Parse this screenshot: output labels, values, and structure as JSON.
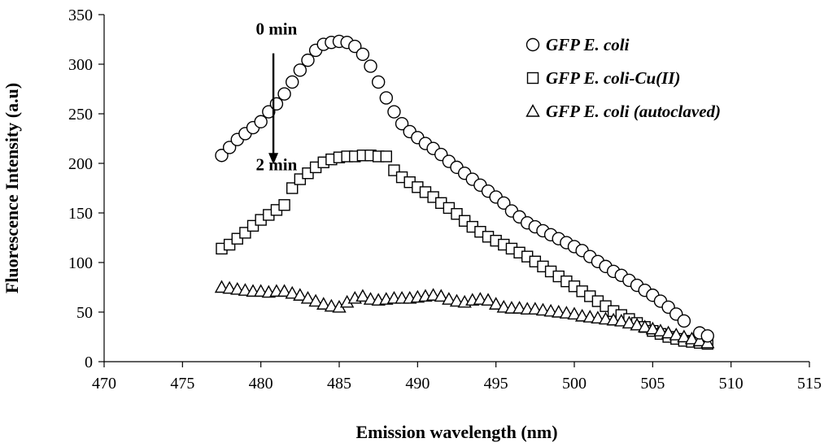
{
  "chart_data": {
    "type": "scatter",
    "title": "",
    "xlabel": "Emission wavelength (nm)",
    "ylabel": "Fluorescence Intensity (a.u)",
    "xlim": [
      470,
      515
    ],
    "ylim": [
      0,
      350
    ],
    "xticks": [
      470,
      475,
      480,
      485,
      490,
      495,
      500,
      505,
      510,
      515
    ],
    "yticks": [
      0,
      50,
      100,
      150,
      200,
      250,
      300,
      350
    ],
    "grid": false,
    "legend_position": "top-right",
    "annotations": [
      {
        "text": "0 min",
        "x": 481.0,
        "y": 330
      },
      {
        "text": "2 min",
        "x": 481.0,
        "y": 193
      }
    ],
    "arrow": {
      "from": [
        480.8,
        311
      ],
      "to": [
        480.8,
        199
      ]
    },
    "series": [
      {
        "name": "GFP E. coli",
        "marker": "circle",
        "x": [
          477.5,
          478.0,
          478.5,
          479.0,
          479.5,
          480.0,
          480.5,
          481.0,
          481.5,
          482.0,
          482.5,
          483.0,
          483.5,
          484.0,
          484.5,
          485.0,
          485.5,
          486.0,
          486.5,
          487.0,
          487.5,
          488.0,
          488.5,
          489.0,
          489.5,
          490.0,
          490.5,
          491.0,
          491.5,
          492.0,
          492.5,
          493.0,
          493.5,
          494.0,
          494.5,
          495.0,
          495.5,
          496.0,
          496.5,
          497.0,
          497.5,
          498.0,
          498.5,
          499.0,
          499.5,
          500.0,
          500.5,
          501.0,
          501.5,
          502.0,
          502.5,
          503.0,
          503.5,
          504.0,
          504.5,
          505.0,
          505.5,
          506.0,
          506.5,
          507.0,
          508.0,
          508.5
        ],
        "values": [
          208,
          216,
          224,
          230,
          236,
          242,
          252,
          260,
          270,
          282,
          294,
          304,
          314,
          320,
          322,
          323,
          322,
          318,
          310,
          298,
          282,
          266,
          252,
          240,
          232,
          226,
          220,
          215,
          209,
          202,
          196,
          190,
          184,
          178,
          172,
          166,
          160,
          152,
          146,
          140,
          136,
          132,
          128,
          124,
          120,
          116,
          112,
          106,
          101,
          96,
          91,
          87,
          82,
          77,
          72,
          67,
          61,
          55,
          48,
          41,
          29,
          26
        ]
      },
      {
        "name": "GFP E. coli-Cu(II)",
        "marker": "square",
        "x": [
          477.5,
          478.0,
          478.5,
          479.0,
          479.5,
          480.0,
          480.5,
          481.0,
          481.5,
          482.0,
          482.5,
          483.0,
          483.5,
          484.0,
          484.5,
          485.0,
          485.5,
          486.0,
          486.5,
          487.0,
          487.5,
          488.0,
          488.5,
          489.0,
          489.5,
          490.0,
          490.5,
          491.0,
          491.5,
          492.0,
          492.5,
          493.0,
          493.5,
          494.0,
          494.5,
          495.0,
          495.5,
          496.0,
          496.5,
          497.0,
          497.5,
          498.0,
          498.5,
          499.0,
          499.5,
          500.0,
          500.5,
          501.0,
          501.5,
          502.0,
          502.5,
          503.0,
          503.5,
          504.0,
          504.5,
          505.0,
          505.5,
          506.0,
          506.5,
          507.0,
          507.5,
          508.0,
          508.5
        ],
        "values": [
          114,
          118,
          124,
          130,
          137,
          143,
          148,
          153,
          158,
          175,
          184,
          190,
          196,
          201,
          204,
          206,
          207,
          207,
          208,
          208,
          207,
          207,
          193,
          186,
          181,
          176,
          171,
          166,
          160,
          155,
          149,
          142,
          136,
          131,
          126,
          122,
          118,
          114,
          110,
          106,
          101,
          96,
          91,
          86,
          81,
          76,
          71,
          66,
          61,
          56,
          51,
          47,
          43,
          39,
          35,
          31,
          28,
          25,
          23,
          21,
          20,
          19,
          18
        ]
      },
      {
        "name": "GFP E. coli (autoclaved)",
        "marker": "triangle",
        "x": [
          477.5,
          478.0,
          478.5,
          479.0,
          479.5,
          480.0,
          480.5,
          481.0,
          481.5,
          482.0,
          482.5,
          483.0,
          483.5,
          484.0,
          484.5,
          485.0,
          485.5,
          486.0,
          486.5,
          487.0,
          487.5,
          488.0,
          488.5,
          489.0,
          489.5,
          490.0,
          490.5,
          491.0,
          491.5,
          492.0,
          492.5,
          493.0,
          493.5,
          494.0,
          494.5,
          495.0,
          495.5,
          496.0,
          496.5,
          497.0,
          497.5,
          498.0,
          498.5,
          499.0,
          499.5,
          500.0,
          500.5,
          501.0,
          501.5,
          502.0,
          502.5,
          503.0,
          503.5,
          504.0,
          504.5,
          505.0,
          505.5,
          506.0,
          506.5,
          507.0,
          507.5,
          508.0,
          508.5
        ],
        "values": [
          75,
          74,
          73,
          72,
          71,
          71,
          70,
          71,
          71,
          69,
          67,
          64,
          61,
          58,
          56,
          55,
          60,
          64,
          66,
          63,
          62,
          63,
          64,
          64,
          64,
          65,
          66,
          67,
          66,
          63,
          61,
          60,
          62,
          63,
          62,
          58,
          55,
          54,
          54,
          53,
          53,
          52,
          51,
          50,
          49,
          48,
          46,
          45,
          44,
          43,
          42,
          41,
          39,
          37,
          35,
          33,
          31,
          29,
          27,
          25,
          23,
          21,
          19
        ]
      }
    ]
  }
}
